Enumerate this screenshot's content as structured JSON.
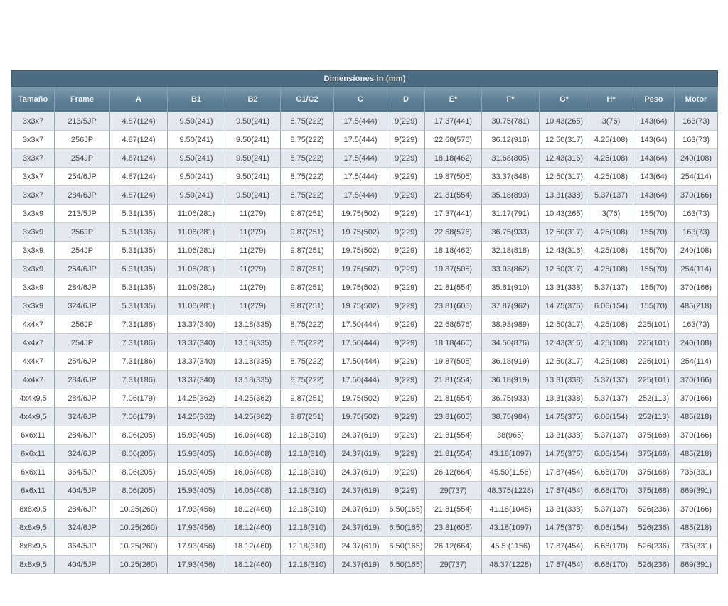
{
  "colors": {
    "title_band_bg": "#4c6c81",
    "header_bg": "#5d8096",
    "header_text": "#f0f5f8",
    "row_alt_bg": "#e4e9ef",
    "row_bg": "#ffffff",
    "cell_text": "#3e4144"
  },
  "table": {
    "title": "Dimensiones in (mm)",
    "columns": [
      "Tamaño",
      "Frame",
      "A",
      "B1",
      "B2",
      "C1/C2",
      "C",
      "D",
      "E*",
      "F*",
      "G*",
      "H*",
      "Peso",
      "Motor"
    ],
    "rows": [
      [
        "3x3x7",
        "213/5JP",
        "4.87(124)",
        "9.50(241)",
        "9.50(241)",
        "8.75(222)",
        "17.5(444)",
        "9(229)",
        "17.37(441)",
        "30.75(781)",
        "10.43(265)",
        "3(76)",
        "143(64)",
        "163(73)"
      ],
      [
        "3x3x7",
        "256JP",
        "4.87(124)",
        "9.50(241)",
        "9.50(241)",
        "8.75(222)",
        "17.5(444)",
        "9(229)",
        "22.68(576)",
        "36.12(918)",
        "12.50(317)",
        "4.25(108)",
        "143(64)",
        "163(73)"
      ],
      [
        "3x3x7",
        "254JP",
        "4.87(124)",
        "9.50(241)",
        "9.50(241)",
        "8.75(222)",
        "17.5(444)",
        "9(229)",
        "18.18(462)",
        "31.68(805)",
        "12.43(316)",
        "4.25(108)",
        "143(64)",
        "240(108)"
      ],
      [
        "3x3x7",
        "254/6JP",
        "4.87(124)",
        "9.50(241)",
        "9.50(241)",
        "8.75(222)",
        "17.5(444)",
        "9(229)",
        "19.87(505)",
        "33.37(848)",
        "12.50(317)",
        "4.25(108)",
        "143(64)",
        "254(114)"
      ],
      [
        "3x3x7",
        "284/6JP",
        "4.87(124)",
        "9.50(241)",
        "9.50(241)",
        "8.75(222)",
        "17.5(444)",
        "9(229)",
        "21.81(554)",
        "35.18(893)",
        "13.31(338)",
        "5.37(137)",
        "143(64)",
        "370(166)"
      ],
      [
        "3x3x9",
        "213/5JP",
        "5.31(135)",
        "11.06(281)",
        "11(279)",
        "9.87(251)",
        "19.75(502)",
        "9(229)",
        "17.37(441)",
        "31.17(791)",
        "10.43(265)",
        "3(76)",
        "155(70)",
        "163(73)"
      ],
      [
        "3x3x9",
        "256JP",
        "5.31(135)",
        "11.06(281)",
        "11(279)",
        "9.87(251)",
        "19.75(502)",
        "9(229)",
        "22.68(576)",
        "36.75(933)",
        "12.50(317)",
        "4.25(108)",
        "155(70)",
        "163(73)"
      ],
      [
        "3x3x9",
        "254JP",
        "5.31(135)",
        "11.06(281)",
        "11(279)",
        "9.87(251)",
        "19.75(502)",
        "9(229)",
        "18.18(462)",
        "32.18(818)",
        "12.43(316)",
        "4.25(108)",
        "155(70)",
        "240(108)"
      ],
      [
        "3x3x9",
        "254/6JP",
        "5.31(135)",
        "11.06(281)",
        "11(279)",
        "9.87(251)",
        "19.75(502)",
        "9(229)",
        "19.87(505)",
        "33.93(862)",
        "12.50(317)",
        "4.25(108)",
        "155(70)",
        "254(114)"
      ],
      [
        "3x3x9",
        "284/6JP",
        "5.31(135)",
        "11.06(281)",
        "11(279)",
        "9.87(251)",
        "19.75(502)",
        "9(229)",
        "21.81(554)",
        "35.81(910)",
        "13.31(338)",
        "5.37(137)",
        "155(70)",
        "370(166)"
      ],
      [
        "3x3x9",
        "324/6JP",
        "5.31(135)",
        "11.06(281)",
        "11(279)",
        "9.87(251)",
        "19.75(502)",
        "9(229)",
        "23.81(605)",
        "37.87(962)",
        "14.75(375)",
        "6.06(154)",
        "155(70)",
        "485(218)"
      ],
      [
        "4x4x7",
        "256JP",
        "7.31(186)",
        "13.37(340)",
        "13.18(335)",
        "8.75(222)",
        "17.50(444)",
        "9(229)",
        "22.68(576)",
        "38.93(989)",
        "12.50(317)",
        "4.25(108)",
        "225(101)",
        "163(73)"
      ],
      [
        "4x4x7",
        "254JP",
        "7.31(186)",
        "13.37(340)",
        "13.18(335)",
        "8.75(222)",
        "17.50(444)",
        "9(229)",
        "18.18(460)",
        "34.50(876)",
        "12.43(316)",
        "4.25(108)",
        "225(101)",
        "240(108)"
      ],
      [
        "4x4x7",
        "254/6JP",
        "7.31(186)",
        "13.37(340)",
        "13.18(335)",
        "8.75(222)",
        "17.50(444)",
        "9(229)",
        "19.87(505)",
        "36.18(919)",
        "12.50(317)",
        "4.25(108)",
        "225(101)",
        "254(114)"
      ],
      [
        "4x4x7",
        "284/6JP",
        "7.31(186)",
        "13.37(340)",
        "13.18(335)",
        "8.75(222)",
        "17.50(444)",
        "9(229)",
        "21.81(554)",
        "36.18(919)",
        "13.31(338)",
        "5.37(137)",
        "225(101)",
        "370(166)"
      ],
      [
        "4x4x9,5",
        "284/6JP",
        "7.06(179)",
        "14.25(362)",
        "14.25(362)",
        "9.87(251)",
        "19.75(502)",
        "9(229)",
        "21.81(554)",
        "36.75(933)",
        "13.31(338)",
        "5.37(137)",
        "252(113)",
        "370(166)"
      ],
      [
        "4x4x9,5",
        "324/6JP",
        "7.06(179)",
        "14.25(362)",
        "14.25(362)",
        "9.87(251)",
        "19.75(502)",
        "9(229)",
        "23.81(605)",
        "38.75(984)",
        "14.75(375)",
        "6.06(154)",
        "252(113)",
        "485(218)"
      ],
      [
        "6x6x11",
        "284/6JP",
        "8.06(205)",
        "15.93(405)",
        "16.06(408)",
        "12.18(310)",
        "24.37(619)",
        "9(229)",
        "21.81(554)",
        "38(965)",
        "13.31(338)",
        "5.37(137)",
        "375(168)",
        "370(166)"
      ],
      [
        "6x6x11",
        "324/6JP",
        "8.06(205)",
        "15.93(405)",
        "16.06(408)",
        "12.18(310)",
        "24.37(619)",
        "9(229)",
        "21.81(554)",
        "43.18(1097)",
        "14.75(375)",
        "6.06(154)",
        "375(168)",
        "485(218)"
      ],
      [
        "6x6x11",
        "364/5JP",
        "8.06(205)",
        "15.93(405)",
        "16.06(408)",
        "12.18(310)",
        "24.37(619)",
        "9(229)",
        "26.12(664)",
        "45.50(1156)",
        "17.87(454)",
        "6.68(170)",
        "375(168)",
        "736(331)"
      ],
      [
        "6x6x11",
        "404/5JP",
        "8.06(205)",
        "15.93(405)",
        "16.06(408)",
        "12.18(310)",
        "24.37(619)",
        "9(229)",
        "29(737)",
        "48.375(1228)",
        "17.87(454)",
        "6.68(170)",
        "375(168)",
        "869(391)"
      ],
      [
        "8x8x9,5",
        "284/6JP",
        "10.25(260)",
        "17.93(456)",
        "18.12(460)",
        "12.18(310)",
        "24.37(619)",
        "6.50(165)",
        "21.81(554)",
        "41.18(1045)",
        "13.31(338)",
        "5.37(137)",
        "526(236)",
        "370(166)"
      ],
      [
        "8x8x9,5",
        "324/6JP",
        "10.25(260)",
        "17.93(456)",
        "18.12(460)",
        "12.18(310)",
        "24.37(619)",
        "6.50(165)",
        "23.81(605)",
        "43.18(1097)",
        "14.75(375)",
        "6.06(154)",
        "526(236)",
        "485(218)"
      ],
      [
        "8x8x9,5",
        "364/5JP",
        "10.25(260)",
        "17.93(456)",
        "18.12(460)",
        "12.18(310)",
        "24.37(619)",
        "6.50(165)",
        "26.12(664)",
        "45.5 (1156)",
        "17.87(454)",
        "6.68(170)",
        "526(236)",
        "736(331)"
      ],
      [
        "8x8x9,5",
        "404/5JP",
        "10.25(260)",
        "17.93(456)",
        "18.12(460)",
        "12.18(310)",
        "24.37(619)",
        "6.50(165)",
        "29(737)",
        "48.37(1228)",
        "17.87(454)",
        "6.68(170)",
        "526(236)",
        "869(391)"
      ]
    ]
  }
}
